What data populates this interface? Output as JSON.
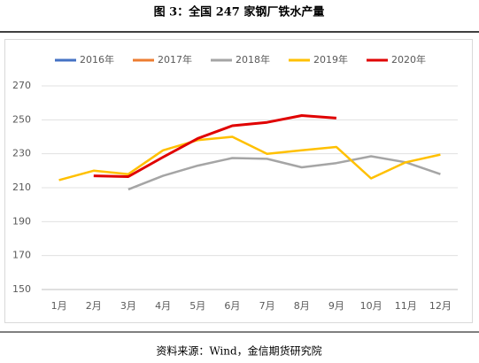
{
  "chart_data": {
    "type": "line",
    "title": "图 3：全国 247 家钢厂铁水产量",
    "source": "资料来源：Wind，金信期货研究院",
    "categories": [
      "1月",
      "2月",
      "3月",
      "4月",
      "5月",
      "6月",
      "7月",
      "8月",
      "9月",
      "10月",
      "11月",
      "12月"
    ],
    "series": [
      {
        "name": "2016年",
        "color": "#4472c4",
        "values": [
          null,
          null,
          null,
          null,
          null,
          null,
          null,
          null,
          null,
          null,
          null,
          null
        ]
      },
      {
        "name": "2017年",
        "color": "#ed7d31",
        "values": [
          null,
          null,
          null,
          null,
          null,
          null,
          null,
          null,
          null,
          null,
          null,
          null
        ]
      },
      {
        "name": "2018年",
        "color": "#a5a5a5",
        "values": [
          null,
          null,
          209,
          217,
          223,
          227.5,
          227,
          222,
          224.5,
          228.5,
          225,
          218
        ]
      },
      {
        "name": "2019年",
        "color": "#ffc000",
        "values": [
          214.5,
          220,
          218,
          232,
          238,
          240,
          230,
          232,
          234,
          215.5,
          225,
          229.5
        ]
      },
      {
        "name": "2020年",
        "color": "#e00000",
        "values": [
          null,
          217,
          216.5,
          228,
          239,
          246.5,
          248.5,
          252.5,
          251,
          null,
          null,
          null
        ]
      }
    ],
    "ylim": [
      150,
      270
    ],
    "yticks": [
      150,
      170,
      190,
      210,
      230,
      250,
      270
    ],
    "grid": true,
    "legend": "top"
  }
}
